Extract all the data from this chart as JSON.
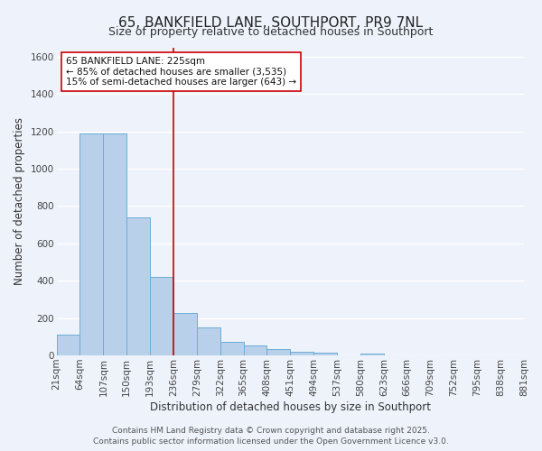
{
  "title": "65, BANKFIELD LANE, SOUTHPORT, PR9 7NL",
  "subtitle": "Size of property relative to detached houses in Southport",
  "bar_heights": [
    110,
    1190,
    1190,
    740,
    420,
    225,
    150,
    75,
    55,
    35,
    20,
    15,
    0,
    10,
    0,
    0,
    0,
    0,
    0,
    0
  ],
  "bin_labels": [
    "21sqm",
    "64sqm",
    "107sqm",
    "150sqm",
    "193sqm",
    "236sqm",
    "279sqm",
    "322sqm",
    "365sqm",
    "408sqm",
    "451sqm",
    "494sqm",
    "537sqm",
    "580sqm",
    "623sqm",
    "666sqm",
    "709sqm",
    "752sqm",
    "795sqm",
    "838sqm",
    "881sqm"
  ],
  "bar_color": "#b8d0ea",
  "bar_edge_color": "#6aaed6",
  "ylabel": "Number of detached properties",
  "xlabel": "Distribution of detached houses by size in Southport",
  "ylim": [
    0,
    1650
  ],
  "yticks": [
    0,
    200,
    400,
    600,
    800,
    1000,
    1200,
    1400,
    1600
  ],
  "vline_x": 5,
  "vline_color": "#cc0000",
  "annotation_title": "65 BANKFIELD LANE: 225sqm",
  "annotation_line1": "← 85% of detached houses are smaller (3,535)",
  "annotation_line2": "15% of semi-detached houses are larger (643) →",
  "footer1": "Contains HM Land Registry data © Crown copyright and database right 2025.",
  "footer2": "Contains public sector information licensed under the Open Government Licence v3.0.",
  "background_color": "#eef2fb",
  "grid_color": "#ffffff",
  "title_fontsize": 11,
  "subtitle_fontsize": 9,
  "axis_label_fontsize": 8.5,
  "tick_fontsize": 7.5,
  "footer_fontsize": 6.5,
  "n_bins": 20
}
